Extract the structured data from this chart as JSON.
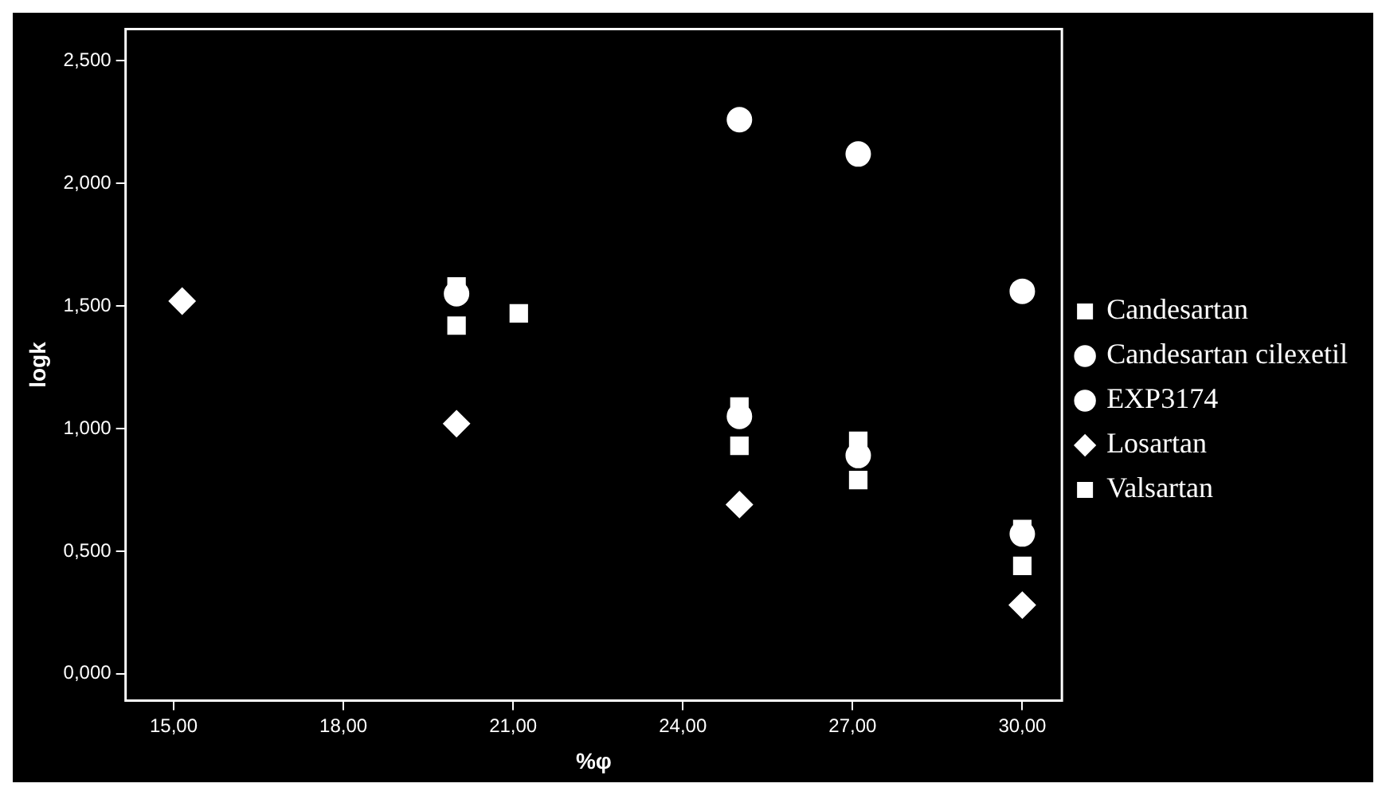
{
  "chart_data": {
    "type": "scatter",
    "xlabel": "%φ",
    "ylabel": "logk",
    "xlim": [
      14.15,
      30.7
    ],
    "ylim": [
      -0.11,
      2.63
    ],
    "xticks": [
      {
        "value": 15,
        "label": "15,00"
      },
      {
        "value": 18,
        "label": "18,00"
      },
      {
        "value": 21,
        "label": "21,00"
      },
      {
        "value": 24,
        "label": "24,00"
      },
      {
        "value": 27,
        "label": "27,00"
      },
      {
        "value": 30,
        "label": "30,00"
      }
    ],
    "yticks": [
      {
        "value": 0,
        "label": "0,000"
      },
      {
        "value": 0.5,
        "label": "0,500"
      },
      {
        "value": 1,
        "label": "1,000"
      },
      {
        "value": 1.5,
        "label": "1,500"
      },
      {
        "value": 2,
        "label": "2,000"
      },
      {
        "value": 2.5,
        "label": "2,500"
      }
    ],
    "grid": false,
    "legend": "right",
    "series": [
      {
        "name": "Candesartan",
        "color": "#ffffff",
        "marker": "square",
        "x": [
          20,
          25,
          27.1,
          30
        ],
        "values": [
          1.42,
          0.93,
          0.79,
          0.44
        ]
      },
      {
        "name": "Candesartan cilexetil",
        "color": "#ffffff",
        "marker": "circle",
        "x": [
          25,
          27.1,
          30
        ],
        "values": [
          2.26,
          2.12,
          1.56
        ]
      },
      {
        "name": "EXP3174",
        "color": "#ffffff",
        "marker": "circle",
        "x": [
          20,
          25,
          27.1,
          30
        ],
        "values": [
          1.55,
          1.05,
          0.89,
          0.57
        ]
      },
      {
        "name": "Losartan",
        "color": "#ffffff",
        "marker": "diamond",
        "x": [
          15.15,
          20,
          25,
          30
        ],
        "values": [
          1.52,
          1.02,
          0.69,
          0.28
        ]
      },
      {
        "name": "Valsartan",
        "color": "#ffffff",
        "marker": "square",
        "x": [
          20,
          21.1,
          25,
          27.1,
          30
        ],
        "values": [
          1.58,
          1.47,
          1.09,
          0.95,
          0.59
        ]
      }
    ]
  }
}
